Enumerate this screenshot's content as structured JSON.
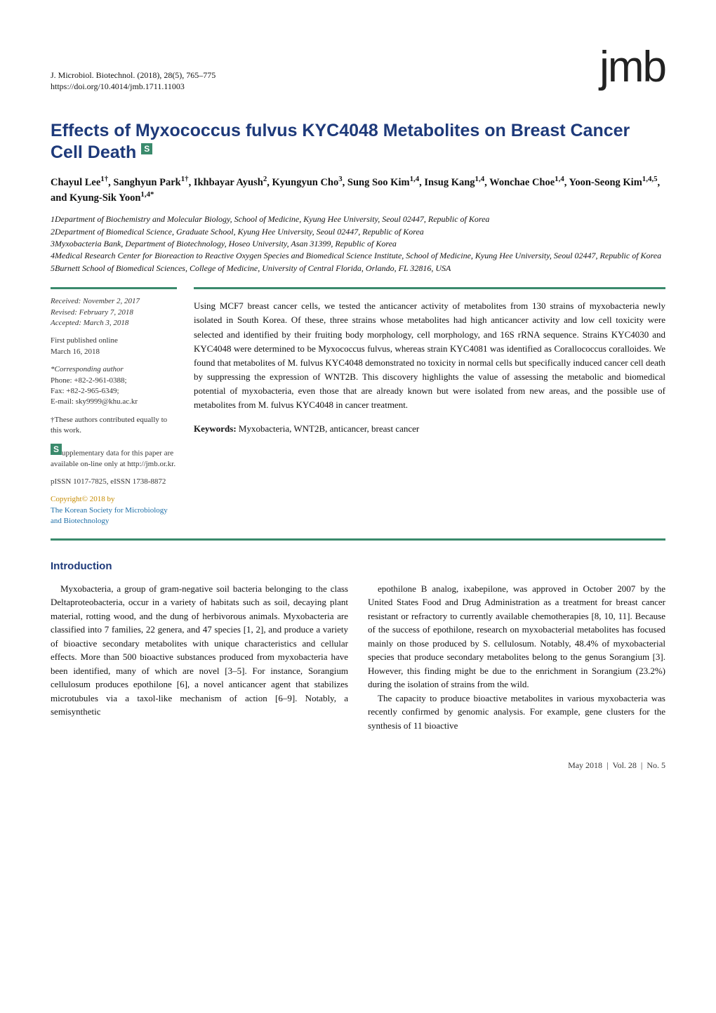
{
  "header": {
    "citation_line1": "J. Microbiol. Biotechnol. (2018), 28(5), 765–775",
    "citation_line2": "https://doi.org/10.4014/jmb.1711.11003",
    "logo": "jmb"
  },
  "article": {
    "title": "Effects of Myxococcus fulvus KYC4048 Metabolites on Breast Cancer Cell Death",
    "supp_badge": "S",
    "authors_html": "Chayul Lee<sup>1†</sup>, Sanghyun Park<sup>1†</sup>, Ikhbayar Ayush<sup>2</sup>, Kyungyun Cho<sup>3</sup>, Sung Soo Kim<sup>1,4</sup>, Insug Kang<sup>1,4</sup>, Wonchae Choe<sup>1,4</sup>, Yoon-Seong Kim<sup>1,4,5</sup>, and Kyung-Sik Yoon<sup>1,4*</sup>",
    "affiliations": [
      "1Department of Biochemistry and Molecular Biology, School of Medicine, Kyung Hee University, Seoul 02447, Republic of Korea",
      "2Department of Biomedical Science, Graduate School, Kyung Hee University, Seoul 02447, Republic of Korea",
      "3Myxobacteria Bank, Department of Biotechnology, Hoseo University, Asan 31399, Republic of Korea",
      "4Medical Research Center for Bioreaction to Reactive Oxygen Species and Biomedical Science Institute, School of Medicine, Kyung Hee University, Seoul 02447, Republic of Korea",
      "5Burnett School of Biomedical Sciences, College of Medicine, University of Central Florida, Orlando, FL 32816, USA"
    ]
  },
  "meta": {
    "received": "Received: November 2, 2017",
    "revised": "Revised: February 7, 2018",
    "accepted": "Accepted: March 3, 2018",
    "first_pub_label": "First published online",
    "first_pub_date": "March 16, 2018",
    "corr_label": "*Corresponding author",
    "phone": "Phone: +82-2-961-0388;",
    "fax": "Fax: +82-2-965-6349;",
    "email": "E-mail: sky9999@khu.ac.kr",
    "equal": "†These authors contributed equally to this work.",
    "supp_badge": "S",
    "supp_text": "upplementary data for this paper are available on-line only at http://jmb.or.kr.",
    "issn": "pISSN 1017-7825, eISSN 1738-8872",
    "copyright": "Copyright© 2018 by",
    "society1": "The Korean Society for Microbiology",
    "society2": "and Biotechnology"
  },
  "abstract": {
    "text": "Using MCF7 breast cancer cells, we tested the anticancer activity of metabolites from 130 strains of myxobacteria newly isolated in South Korea. Of these, three strains whose metabolites had high anticancer activity and low cell toxicity were selected and identified by their fruiting body morphology, cell morphology, and 16S rRNA sequence. Strains KYC4030 and KYC4048 were determined to be Myxococcus fulvus, whereas strain KYC4081 was identified as Corallococcus coralloides. We found that metabolites of M. fulvus KYC4048 demonstrated no toxicity in normal cells but specifically induced cancer cell death by suppressing the expression of WNT2B. This discovery highlights the value of assessing the metabolic and biomedical potential of myxobacteria, even those that are already known but were isolated from new areas, and the possible use of metabolites from M. fulvus KYC4048 in cancer treatment.",
    "keywords_label": "Keywords:",
    "keywords_text": " Myxobacteria, WNT2B, anticancer, breast cancer"
  },
  "body": {
    "intro_heading": "Introduction",
    "para1": "Myxobacteria, a group of gram-negative soil bacteria belonging to the class Deltaproteobacteria, occur in a variety of habitats such as soil, decaying plant material, rotting wood, and the dung of herbivorous animals. Myxobacteria are classified into 7 families, 22 genera, and 47 species [1, 2], and produce a variety of bioactive secondary metabolites with unique characteristics and cellular effects. More than 500 bioactive substances produced from myxobacteria have been identified, many of which are novel [3–5]. For instance, Sorangium cellulosum produces epothilone [6], a novel anticancer agent that stabilizes microtubules via a taxol-like mechanism of action [6–9]. Notably, a semisynthetic",
    "para2": "epothilone B analog, ixabepilone, was approved in October 2007 by the United States Food and Drug Administration as a treatment for breast cancer resistant or refractory to currently available chemotherapies [8, 10, 11]. Because of the success of epothilone, research on myxobacterial metabolites has focused mainly on those produced by S. cellulosum. Notably, 48.4% of myxobacterial species that produce secondary metabolites belong to the genus Sorangium [3]. However, this finding might be due to the enrichment in Sorangium (23.2%) during the isolation of strains from the wild.",
    "para3": "The capacity to produce bioactive metabolites in various myxobacteria was recently confirmed by genomic analysis. For example, gene clusters for the synthesis of 11 bioactive"
  },
  "footer": {
    "month": "May 2018",
    "vol": "Vol. 28",
    "no": "No. 5"
  },
  "styles": {
    "accent_color": "#1e3a7a",
    "abs_rule_color": "#3a8a6c",
    "copyright_color": "#c68b00",
    "society_color": "#1e6fa8",
    "body_fontsize_pt": 10,
    "title_fontsize_pt": 19,
    "logo_fontsize_pt": 46
  }
}
